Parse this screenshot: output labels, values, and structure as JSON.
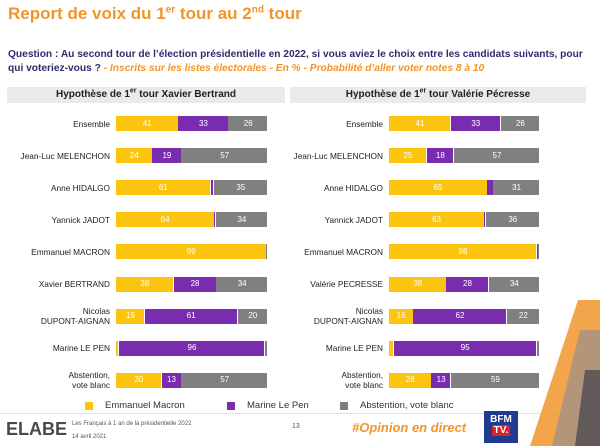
{
  "title": {
    "before": "Report de voix du 1",
    "sup1": "er",
    "middle": " tour au 2",
    "sup2": "nd",
    "after": " tour"
  },
  "question": {
    "text": "Question : Au second tour de l’élection présidentielle en 2022, si vous aviez le choix entre les candidats suivants, pour qui voteriez-vous ?",
    "subtext": " - Inscrits sur les listes électorales - En % - Probabilité d’aller voter notes 8 à 10"
  },
  "panels": {
    "left": {
      "title_before": "Hypothèse de 1",
      "title_sup": "er",
      "title_after": " tour Xavier Bertrand"
    },
    "right": {
      "title_before": "Hypothèse de 1",
      "title_sup": "er",
      "title_after": " tour Valérie Pécresse"
    }
  },
  "colors": {
    "macron": "#fbc40f",
    "lepen": "#7a2cb1",
    "abstention": "#808080"
  },
  "chart_data": [
    {
      "type": "bar",
      "title": "Hypothèse de 1er tour Xavier Bertrand",
      "stacked": true,
      "orientation": "horizontal",
      "xlim": [
        0,
        100
      ],
      "categories": [
        "Ensemble",
        "Jean-Luc MELENCHON",
        "Anne HIDALGO",
        "Yannick JADOT",
        "Emmanuel MACRON",
        "Xavier BERTRAND",
        "Nicolas DUPONT-AIGNAN",
        "Marine LE PEN",
        "Abstention, vote blanc"
      ],
      "category_lines": [
        [
          "Ensemble"
        ],
        [
          "Jean-Luc MELENCHON"
        ],
        [
          "Anne HIDALGO"
        ],
        [
          "Yannick JADOT"
        ],
        [
          "Emmanuel MACRON"
        ],
        [
          "Xavier BERTRAND"
        ],
        [
          "Nicolas",
          "DUPONT-AIGNAN"
        ],
        [
          "Marine LE PEN"
        ],
        [
          "Abstention,",
          "vote blanc"
        ]
      ],
      "series": [
        {
          "name": "Emmanuel Macron",
          "values": [
            41,
            24,
            61,
            64,
            99,
            38,
            19,
            2,
            30
          ]
        },
        {
          "name": "Marine Le Pen",
          "values": [
            33,
            19,
            2,
            1,
            0,
            28,
            61,
            96,
            13
          ]
        },
        {
          "name": "Abstention, vote blanc",
          "values": [
            26,
            57,
            35,
            34,
            1,
            34,
            20,
            2,
            57
          ]
        }
      ]
    },
    {
      "type": "bar",
      "title": "Hypothèse de 1er tour Valérie Pécresse",
      "stacked": true,
      "orientation": "horizontal",
      "xlim": [
        0,
        100
      ],
      "categories": [
        "Ensemble",
        "Jean-Luc MELENCHON",
        "Anne HIDALGO",
        "Yannick JADOT",
        "Emmanuel MACRON",
        "Valérie PECRESSE",
        "Nicolas DUPONT-AIGNAN",
        "Marine LE PEN",
        "Abstention, vote blanc"
      ],
      "category_lines": [
        [
          "Ensemble"
        ],
        [
          "Jean-Luc MELENCHON"
        ],
        [
          "Anne HIDALGO"
        ],
        [
          "Yannick JADOT"
        ],
        [
          "Emmanuel MACRON"
        ],
        [
          "Valérie PECRESSE"
        ],
        [
          "Nicolas",
          "DUPONT-AIGNAN"
        ],
        [
          "Marine LE PEN"
        ],
        [
          "Abstention,",
          "vote blanc"
        ]
      ],
      "series": [
        {
          "name": "Emmanuel Macron",
          "values": [
            41,
            25,
            65,
            63,
            98,
            38,
            16,
            3,
            28
          ]
        },
        {
          "name": "Marine Le Pen",
          "values": [
            33,
            18,
            4,
            1,
            1,
            28,
            62,
            95,
            13
          ]
        },
        {
          "name": "Abstention, vote blanc",
          "values": [
            26,
            57,
            31,
            36,
            1,
            34,
            22,
            2,
            59
          ]
        }
      ]
    }
  ],
  "legend": [
    "Emmanuel Macron",
    "Marine Le Pen",
    "Abstention, vote blanc"
  ],
  "footer": {
    "logo": "ELABE",
    "study": "Les Français à 1 an de la présidentielle 2022",
    "date": "14 avril 2021",
    "page": "13",
    "hashtag": "#Opinion en direct",
    "bfm_top": "BFM",
    "bfm_bottom": "TV."
  }
}
